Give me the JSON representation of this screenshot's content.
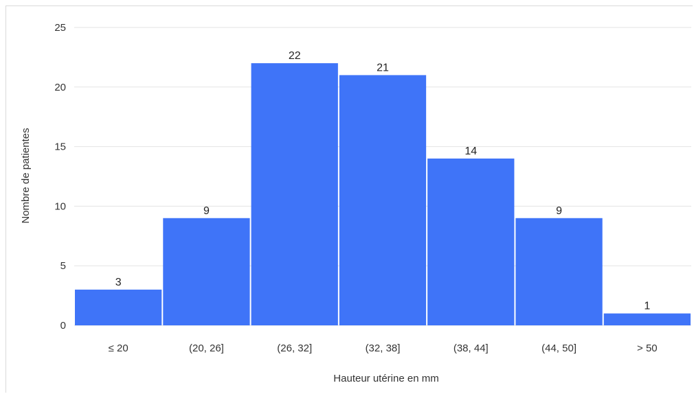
{
  "chart_data": {
    "type": "bar",
    "title": "",
    "xlabel": "Hauteur utérine en mm",
    "ylabel": "Nombre de patientes",
    "categories": [
      "≤ 20",
      "(20, 26]",
      "(26, 32]",
      "(32, 38]",
      "(38, 44]",
      "(44, 50]",
      "> 50"
    ],
    "values": [
      3,
      9,
      22,
      21,
      14,
      9,
      1
    ],
    "ylim": [
      0,
      25
    ],
    "yticks": [
      0,
      5,
      10,
      15,
      20,
      25
    ],
    "grid": true,
    "data_labels": true,
    "bar_color": "#3f74f8",
    "gridline_color": "#e3e3e3"
  }
}
